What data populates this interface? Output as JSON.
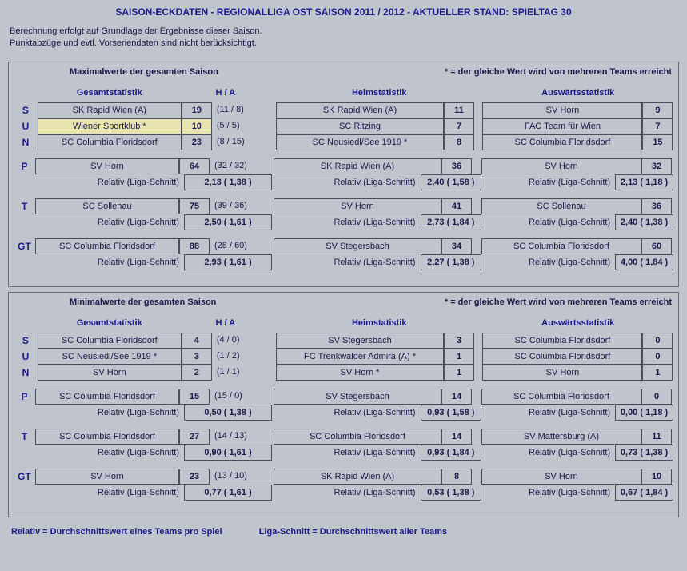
{
  "title": "SAISON-ECKDATEN - REGIONALLIGA OST SAISON 2011 / 2012 - AKTUELLER STAND:  SPIELTAG 30",
  "note_line1": "Berechnung erfolgt auf Grundlage der Ergebnisse dieser Saison.",
  "note_line2": "Punktabzüge und evtl. Vorseriendaten sind nicht berücksichtigt.",
  "shared_note": "* = der gleiche Wert wird von mehreren Teams erreicht",
  "col_headers": {
    "gesamt": "Gesamtstatistik",
    "ha": "H / A",
    "heim": "Heimstatistik",
    "aus": "Auswärtsstatistik"
  },
  "row_labels": {
    "S": "S",
    "U": "U",
    "N": "N",
    "P": "P",
    "T": "T",
    "GT": "GT"
  },
  "rel_label": "Relativ (Liga-Schnitt)",
  "max": {
    "header": "Maximalwerte der gesamten Saison",
    "gesamt": {
      "SUN": [
        {
          "team": "SK Rapid Wien (A)",
          "val": "19",
          "ha": "(11 / 8)",
          "hl": false
        },
        {
          "team": "Wiener Sportklub *",
          "val": "10",
          "ha": "(5 / 5)",
          "hl": true
        },
        {
          "team": "SC Columbia Floridsdorf",
          "val": "23",
          "ha": "(8 / 15)",
          "hl": false
        }
      ],
      "P": {
        "team": "SV Horn",
        "val": "64",
        "ha": "(32 / 32)",
        "rel": "2,13 ( 1,38 )"
      },
      "T": {
        "team": "SC Sollenau",
        "val": "75",
        "ha": "(39 / 36)",
        "rel": "2,50 ( 1,61 )"
      },
      "GT": {
        "team": "SC Columbia Floridsdorf",
        "val": "88",
        "ha": "(28 / 60)",
        "rel": "2,93 ( 1,61 )"
      }
    },
    "heim": {
      "SUN": [
        {
          "team": "SK Rapid Wien (A)",
          "val": "11"
        },
        {
          "team": "SC Ritzing",
          "val": "7"
        },
        {
          "team": "SC Neusiedl/See 1919 *",
          "val": "8"
        }
      ],
      "P": {
        "team": "SK Rapid Wien (A)",
        "val": "36",
        "rel": "2,40 ( 1,58 )"
      },
      "T": {
        "team": "SV Horn",
        "val": "41",
        "rel": "2,73 ( 1,84 )"
      },
      "GT": {
        "team": "SV Stegersbach",
        "val": "34",
        "rel": "2,27 ( 1,38 )"
      }
    },
    "aus": {
      "SUN": [
        {
          "team": "SV Horn",
          "val": "9"
        },
        {
          "team": "FAC Team für Wien",
          "val": "7"
        },
        {
          "team": "SC Columbia Floridsdorf",
          "val": "15"
        }
      ],
      "P": {
        "team": "SV Horn",
        "val": "32",
        "rel": "2,13 ( 1,18 )"
      },
      "T": {
        "team": "SC Sollenau",
        "val": "36",
        "rel": "2,40 ( 1,38 )"
      },
      "GT": {
        "team": "SC Columbia Floridsdorf",
        "val": "60",
        "rel": "4,00 ( 1,84 )"
      }
    }
  },
  "min": {
    "header": "Minimalwerte der gesamten Saison",
    "gesamt": {
      "SUN": [
        {
          "team": "SC Columbia Floridsdorf",
          "val": "4",
          "ha": "(4 / 0)",
          "hl": false
        },
        {
          "team": "SC Neusiedl/See 1919 *",
          "val": "3",
          "ha": "(1 / 2)",
          "hl": false
        },
        {
          "team": "SV Horn",
          "val": "2",
          "ha": "(1 / 1)",
          "hl": false
        }
      ],
      "P": {
        "team": "SC Columbia Floridsdorf",
        "val": "15",
        "ha": "(15 / 0)",
        "rel": "0,50 ( 1,38 )"
      },
      "T": {
        "team": "SC Columbia Floridsdorf",
        "val": "27",
        "ha": "(14 / 13)",
        "rel": "0,90 ( 1,61 )"
      },
      "GT": {
        "team": "SV Horn",
        "val": "23",
        "ha": "(13 / 10)",
        "rel": "0,77 ( 1,61 )"
      }
    },
    "heim": {
      "SUN": [
        {
          "team": "SV Stegersbach",
          "val": "3"
        },
        {
          "team": "FC Trenkwalder Admira (A) *",
          "val": "1"
        },
        {
          "team": "SV Horn *",
          "val": "1"
        }
      ],
      "P": {
        "team": "SV Stegersbach",
        "val": "14",
        "rel": "0,93 ( 1,58 )"
      },
      "T": {
        "team": "SC Columbia Floridsdorf",
        "val": "14",
        "rel": "0,93 ( 1,84 )"
      },
      "GT": {
        "team": "SK Rapid Wien (A)",
        "val": "8",
        "rel": "0,53 ( 1,38 )"
      }
    },
    "aus": {
      "SUN": [
        {
          "team": "SC Columbia Floridsdorf",
          "val": "0"
        },
        {
          "team": "SC Columbia Floridsdorf",
          "val": "0"
        },
        {
          "team": "SV Horn",
          "val": "1"
        }
      ],
      "P": {
        "team": "SC Columbia Floridsdorf",
        "val": "0",
        "rel": "0,00 ( 1,18 )"
      },
      "T": {
        "team": "SV Mattersburg (A)",
        "val": "11",
        "rel": "0,73 ( 1,38 )"
      },
      "GT": {
        "team": "SV Horn",
        "val": "10",
        "rel": "0,67 ( 1,84 )"
      }
    }
  },
  "footer": {
    "rel": "Relativ = Durchschnittswert eines Teams pro Spiel",
    "liga": "Liga-Schnitt = Durchschnittswert aller Teams"
  }
}
